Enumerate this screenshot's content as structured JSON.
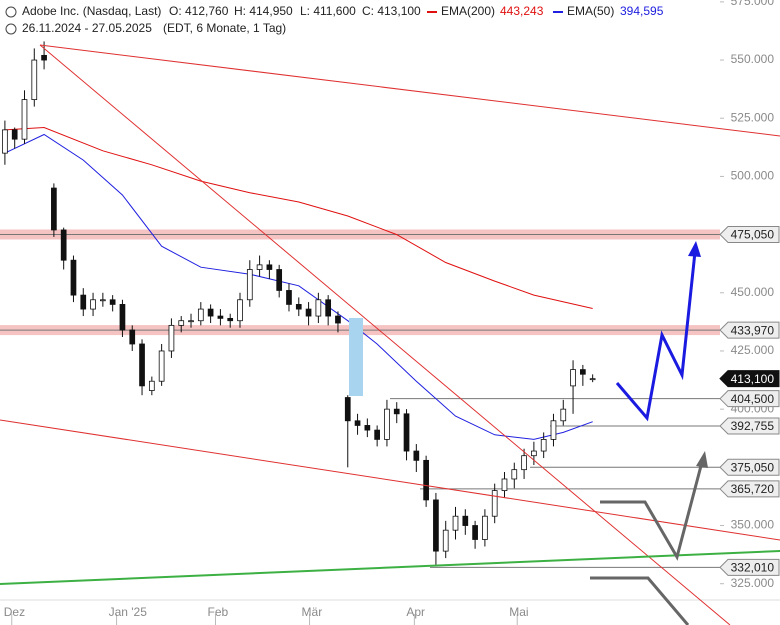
{
  "header": {
    "title": "Adobe Inc. (Nasdaq, Last)",
    "open": "O: 412,760",
    "high": "H: 414,950",
    "low": "L: 411,600",
    "close": "C: 413,100",
    "ema200_value": "443,243",
    "ema50_value": "394,595",
    "range": "26.11.2024 - 27.05.2025",
    "settings": "(EDT, 6 Monate, 1 Tag)"
  },
  "chart_data": {
    "type": "candlestick",
    "open": [
      510000,
      520000,
      516000,
      533000,
      552000,
      495000,
      477000,
      464000,
      449000,
      443000,
      447000,
      447000,
      445000,
      434000,
      428000,
      408000,
      412000,
      425000,
      436000,
      438000,
      438000,
      443000,
      440000,
      439000,
      438000,
      447000,
      460000,
      462000,
      460000,
      451000,
      445000,
      443000,
      440000,
      447000,
      440000,
      405000,
      395000,
      393000,
      391000,
      387000,
      400000,
      398000,
      382000,
      378000,
      361000,
      339000,
      348000,
      354000,
      350000,
      344000,
      354000,
      365000,
      370000,
      374000,
      380000,
      382000,
      387000,
      395000,
      410000,
      417000,
      412760
    ],
    "high": [
      524000,
      521000,
      537000,
      555000,
      558000,
      497000,
      478000,
      466000,
      452000,
      450000,
      450000,
      449000,
      447000,
      436000,
      430000,
      414000,
      428000,
      439000,
      440000,
      441000,
      446000,
      445000,
      443000,
      441000,
      450000,
      464000,
      466000,
      464000,
      462000,
      454000,
      448000,
      446000,
      450000,
      449000,
      442000,
      406000,
      398000,
      396000,
      393000,
      404000,
      403000,
      400000,
      385000,
      380000,
      364000,
      352000,
      358000,
      357000,
      352000,
      357000,
      368000,
      373000,
      377000,
      383000,
      386000,
      390000,
      398000,
      404000,
      421000,
      419000,
      414950
    ],
    "low": [
      505000,
      512000,
      514000,
      530000,
      546000,
      474000,
      460000,
      446000,
      440000,
      440000,
      444000,
      442000,
      431000,
      425000,
      406000,
      406000,
      410000,
      422000,
      433000,
      435000,
      436000,
      437000,
      436000,
      435000,
      435000,
      444000,
      457000,
      456000,
      448000,
      442000,
      440000,
      436000,
      437000,
      436000,
      433000,
      375000,
      389000,
      388000,
      384000,
      384000,
      394000,
      378000,
      373000,
      358000,
      333000,
      336000,
      344000,
      346000,
      340000,
      341000,
      351000,
      362000,
      366000,
      370000,
      376000,
      379000,
      384000,
      393000,
      398000,
      410000,
      411600
    ],
    "close": [
      520000,
      516000,
      533000,
      550000,
      550000,
      477000,
      464000,
      449000,
      443000,
      447000,
      447000,
      445000,
      434000,
      428000,
      410000,
      412000,
      425000,
      436000,
      438000,
      438000,
      443000,
      440000,
      439000,
      438000,
      447000,
      460000,
      462000,
      460000,
      451000,
      445000,
      443000,
      440000,
      447000,
      440000,
      437000,
      395000,
      393000,
      391000,
      387000,
      400000,
      398000,
      382000,
      378000,
      361000,
      339000,
      348000,
      354000,
      350000,
      344000,
      354000,
      365000,
      370000,
      374000,
      380000,
      382000,
      387000,
      395000,
      400000,
      417000,
      415000,
      413100
    ],
    "series": [
      {
        "name": "EMA(200)",
        "color": "#e01010",
        "x": [
          0,
          4,
          10,
          15,
          20,
          25,
          30,
          35,
          40,
          45,
          50,
          54,
          60
        ],
        "values": [
          520000,
          521000,
          511000,
          505000,
          498000,
          493000,
          489000,
          483000,
          475000,
          463000,
          455000,
          449000,
          443243
        ]
      },
      {
        "name": "EMA(50)",
        "color": "#2020e0",
        "x": [
          0,
          4,
          8,
          12,
          16,
          20,
          25,
          30,
          35,
          38,
          42,
          46,
          50,
          54,
          57,
          60
        ],
        "values": [
          510000,
          518000,
          507000,
          492000,
          470000,
          461000,
          458000,
          453000,
          438000,
          428000,
          412000,
          397000,
          389000,
          387000,
          390000,
          394595
        ]
      }
    ],
    "levels": [
      {
        "value": 475050,
        "label": "475,050",
        "zone": true
      },
      {
        "value": 433970,
        "label": "433,970",
        "zone": true
      },
      {
        "value": 413100,
        "label": "413,100",
        "current": true
      },
      {
        "value": 404500,
        "label": "404,500"
      },
      {
        "value": 392755,
        "label": "392,755"
      },
      {
        "value": 375050,
        "label": "375,050"
      },
      {
        "value": 365720,
        "label": "365,720"
      },
      {
        "value": 332010,
        "label": "332,010"
      }
    ],
    "xlim": [
      -0.5,
      73
    ],
    "xticks": [
      {
        "value": 0.7,
        "label": "Dez"
      },
      {
        "value": 11.4,
        "label": "Jan '25"
      },
      {
        "value": 21.5,
        "label": "Feb"
      },
      {
        "value": 31.1,
        "label": "Mär"
      },
      {
        "value": 41.8,
        "label": "Apr"
      },
      {
        "value": 52.3,
        "label": "Mai"
      }
    ],
    "ylim": [
      318000,
      575800
    ],
    "yticks": [
      {
        "value": 575000,
        "label": "575.000"
      },
      {
        "value": 550000,
        "label": "550.000"
      },
      {
        "value": 525000,
        "label": "525.000"
      },
      {
        "value": 500000,
        "label": "500.000"
      },
      {
        "value": 450000,
        "label": "450.000"
      },
      {
        "value": 425000,
        "label": "425.000"
      },
      {
        "value": 400000,
        "label": "400.000"
      },
      {
        "value": 350000,
        "label": "350.000"
      },
      {
        "value": 325000,
        "label": "325.000"
      }
    ]
  }
}
